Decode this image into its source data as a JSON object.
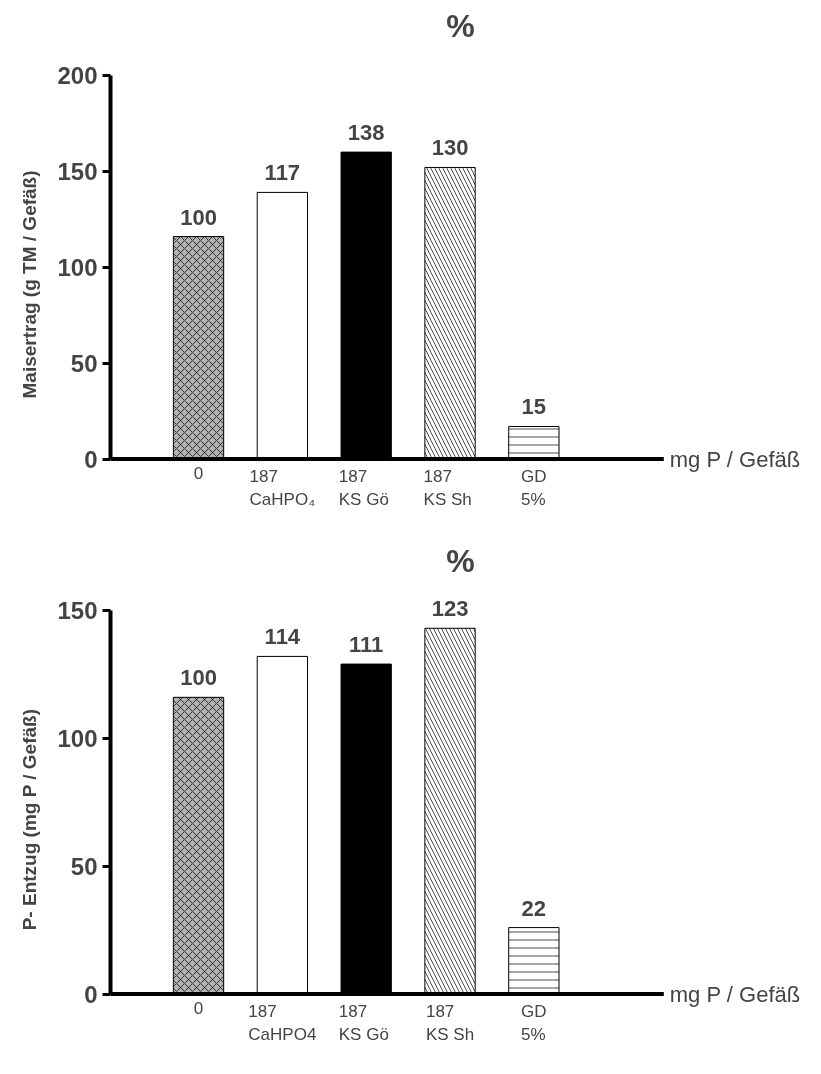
{
  "chart_data": [
    {
      "type": "bar",
      "title": "%",
      "ylabel": "Maisertrag (g TM / Gefäß)",
      "xlabel": "mg P / Gefäß",
      "categories": [
        "0",
        "187\nCaHPO₄",
        "187\nKS  Gö",
        "187\nKS  Sh",
        "GD\n5%"
      ],
      "values": [
        116,
        139,
        160,
        152,
        17
      ],
      "colors": [
        "#b0b0b0",
        "#ffffff",
        "#000000",
        "#ffffff",
        "#ffffff"
      ],
      "annotations": [
        {
          "text": "100",
          "x": "0",
          "y": 116
        },
        {
          "text": "117",
          "x": "187\nCaHPO₄",
          "y": 139
        },
        {
          "text": "138",
          "x": "187\nKS  Gö",
          "y": 160
        },
        {
          "text": "130",
          "x": "187\nKS  Sh",
          "y": 152
        },
        {
          "text": "15",
          "x": "GD\n5%",
          "y": 17
        }
      ],
      "ylim": [
        0,
        200
      ],
      "yticks": [
        0,
        50,
        100,
        150,
        200
      ],
      "grid": false
    },
    {
      "type": "bar",
      "title": "%",
      "ylabel": "P- Entzug (mg P / Gefäß)",
      "xlabel": "mg P / Gefäß",
      "categories": [
        "0",
        "187\nCaHPO4",
        "187\nKS  Gö",
        "187\nKS Sh",
        "GD\n5%"
      ],
      "values": [
        116,
        132,
        129,
        143,
        26
      ],
      "colors": [
        "#b0b0b0",
        "#ffffff",
        "#000000",
        "#ffffff",
        "#ffffff"
      ],
      "annotations": [
        {
          "text": "100",
          "x": "0",
          "y": 116
        },
        {
          "text": "114",
          "x": "187\nCaHPO4",
          "y": 132
        },
        {
          "text": "111",
          "x": "187\nKS  Gö",
          "y": 129
        },
        {
          "text": "123",
          "x": "187\nKS Sh",
          "y": 143
        },
        {
          "text": "22",
          "x": "GD\n5%",
          "y": 26
        }
      ],
      "ylim": [
        0,
        150
      ],
      "yticks": [
        0,
        50,
        100,
        150
      ],
      "grid": false
    }
  ]
}
